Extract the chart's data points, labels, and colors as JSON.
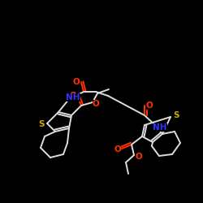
{
  "background_color": "#000000",
  "line_color": "#DDDDDD",
  "atom_colors": {
    "O": "#FF3300",
    "N": "#3333FF",
    "S": "#CCAA00",
    "C": "#DDDDDD"
  },
  "lw": 1.4,
  "fs": 7.5
}
